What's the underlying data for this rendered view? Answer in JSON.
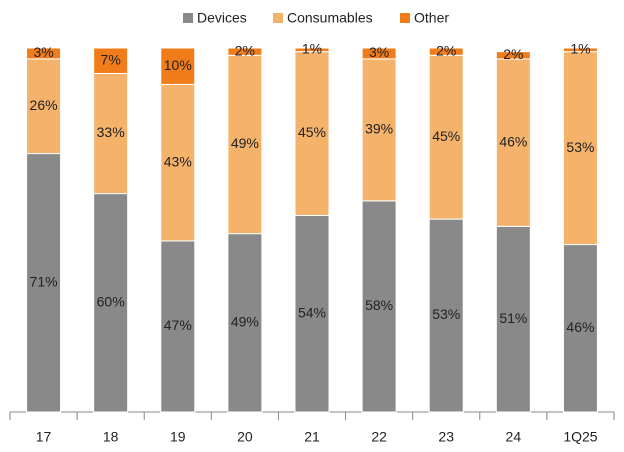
{
  "chart_data": {
    "type": "stacked_bar",
    "categories": [
      "17",
      "18",
      "19",
      "20",
      "21",
      "22",
      "23",
      "24",
      "1Q25"
    ],
    "ylim": [
      0,
      100
    ],
    "legend": "top",
    "series": [
      {
        "name": "Devices",
        "color": "#898989",
        "values": [
          71,
          60,
          47,
          49,
          54,
          58,
          53,
          51,
          46
        ],
        "value_labels": [
          "71%",
          "60%",
          "47%",
          "49%",
          "54%",
          "58%",
          "53%",
          "51%",
          "46%"
        ]
      },
      {
        "name": "Consumables",
        "color": "#f4b26b",
        "values": [
          26,
          33,
          43,
          49,
          45,
          39,
          45,
          46,
          53
        ],
        "value_labels": [
          "26%",
          "33%",
          "43%",
          "49%",
          "45%",
          "39%",
          "45%",
          "46%",
          "53%"
        ]
      },
      {
        "name": "Other",
        "color": "#f07d1a",
        "values": [
          3,
          7,
          10,
          2,
          1,
          3,
          2,
          2,
          1
        ],
        "value_labels": [
          "3%",
          "7%",
          "10%",
          "2%",
          "1%",
          "3%",
          "2%",
          "2%",
          "1%"
        ]
      }
    ]
  }
}
